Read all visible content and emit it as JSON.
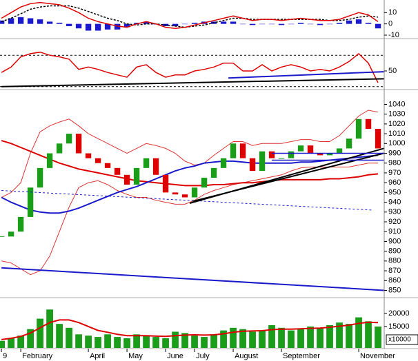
{
  "chart_data": [
    {
      "type": "line",
      "ylim": [
        -10,
        20
      ],
      "yticks": [
        10,
        0,
        -10
      ],
      "series": [
        {
          "color": "#1a1acc",
          "mark": "bar",
          "values": [
            3,
            5,
            6,
            5,
            4,
            2,
            1,
            -2,
            -4,
            -6,
            -6,
            -5,
            -5,
            -3,
            1,
            2,
            0,
            -2,
            -2,
            0,
            1,
            2,
            2,
            2,
            2,
            0,
            -1,
            0,
            0,
            -1,
            0,
            1,
            0,
            -1,
            0,
            1,
            3,
            4,
            1,
            -4
          ]
        },
        {
          "color": "#000000",
          "dash": true,
          "values": [
            2,
            5,
            9,
            13,
            15,
            16,
            16,
            16,
            14,
            11,
            8,
            5,
            3,
            0,
            -1,
            0,
            0,
            -1,
            -2,
            -3,
            -2,
            -1,
            1,
            3,
            5,
            5,
            4,
            4,
            4,
            4,
            4,
            4,
            4,
            4,
            3,
            3,
            4,
            6,
            7,
            6
          ]
        },
        {
          "color": "#dd0000",
          "values": [
            5,
            10,
            15,
            18,
            19,
            18,
            17,
            14,
            10,
            5,
            2,
            0,
            -2,
            -3,
            0,
            2,
            0,
            -3,
            -4,
            -3,
            -1,
            1,
            3,
            5,
            7,
            5,
            3,
            4,
            4,
            3,
            4,
            5,
            4,
            3,
            3,
            4,
            7,
            10,
            8,
            2
          ]
        }
      ]
    },
    {
      "type": "line",
      "ylim": [
        28,
        86
      ],
      "yticks": [
        50
      ],
      "levels": [
        70,
        30
      ],
      "series": [
        {
          "color": "#dd0000",
          "values": [
            48,
            55,
            68,
            72,
            74,
            70,
            68,
            65,
            52,
            55,
            52,
            48,
            45,
            42,
            55,
            58,
            48,
            42,
            45,
            45,
            50,
            52,
            55,
            60,
            60,
            50,
            50,
            58,
            50,
            55,
            58,
            55,
            50,
            52,
            50,
            55,
            62,
            72,
            60,
            35
          ]
        }
      ],
      "lines": [
        {
          "x": [
            0,
            39.6
          ],
          "y": [
            30,
            40
          ],
          "color": "#000000",
          "width": 2
        },
        {
          "x": [
            23.5,
            39.6
          ],
          "y": [
            41,
            49
          ],
          "color": "#1a1acc",
          "width": 2
        }
      ]
    },
    {
      "type": "candlestick",
      "ylim": [
        844,
        1053
      ],
      "yticks": [
        850,
        860,
        870,
        880,
        890,
        900,
        910,
        920,
        930,
        940,
        950,
        960,
        970,
        980,
        990,
        1000,
        1010,
        1020,
        1030,
        1040
      ],
      "close": [
        905,
        910,
        925,
        955,
        975,
        990,
        1000,
        1010,
        990,
        985,
        980,
        975,
        968,
        958,
        975,
        985,
        968,
        950,
        948,
        945,
        955,
        965,
        975,
        985,
        1000,
        985,
        972,
        992,
        985,
        985,
        992,
        998,
        990,
        988,
        990,
        995,
        1005,
        1025,
        1015,
        995
      ],
      "up_color": "#1a9e1a",
      "down_color": "#dd0000",
      "series": [
        {
          "color": "#dd3333",
          "width": 1,
          "values": [
            945,
            950,
            960,
            990,
            1012,
            1018,
            1022,
            1025,
            1018,
            1010,
            1005,
            1000,
            995,
            990,
            995,
            1000,
            998,
            995,
            990,
            982,
            978,
            980,
            988,
            995,
            1002,
            1002,
            998,
            1000,
            1000,
            1000,
            1002,
            1004,
            1004,
            1002,
            1002,
            1008,
            1018,
            1028,
            1034,
            1032
          ]
        },
        {
          "color": "#dd3333",
          "width": 1,
          "values": [
            880,
            878,
            872,
            866,
            870,
            885,
            910,
            935,
            955,
            960,
            962,
            958,
            952,
            948,
            945,
            945,
            942,
            940,
            938,
            938,
            942,
            948,
            952,
            955,
            958,
            960,
            962,
            964,
            966,
            968,
            972,
            975,
            976,
            976,
            976,
            976,
            976,
            978,
            980,
            980
          ]
        },
        {
          "color": "#dd0000",
          "width": 2,
          "values": [
            1003,
            1000,
            996,
            992,
            988,
            984,
            980,
            977,
            974,
            972,
            970,
            968,
            966,
            964,
            962,
            961,
            960,
            959,
            958,
            957,
            957,
            957,
            958,
            958,
            959,
            960,
            960,
            961,
            962,
            963,
            963,
            963,
            963,
            963,
            964,
            964,
            965,
            966,
            968,
            969
          ]
        },
        {
          "color": "#1a1acc",
          "width": 2,
          "values": [
            945,
            940,
            936,
            932,
            930,
            929,
            929,
            931,
            934,
            938,
            942,
            946,
            950,
            953,
            956,
            960,
            964,
            968,
            972,
            975,
            977,
            980,
            981,
            982,
            982,
            981,
            980,
            980,
            980,
            980,
            980,
            981,
            981,
            982,
            983,
            984,
            985,
            986,
            987,
            988
          ]
        }
      ],
      "lines": [
        {
          "x": [
            0,
            39.6
          ],
          "y": [
            873,
            850
          ],
          "color": "#1a1acc",
          "width": 2
        },
        {
          "x": [
            0,
            38.4
          ],
          "y": [
            952,
            932
          ],
          "color": "#1a1acc",
          "width": 1,
          "dash": true
        },
        {
          "x": [
            19.5,
            39.6
          ],
          "y": [
            939,
            995
          ],
          "color": "#000000",
          "width": 2
        },
        {
          "x": [
            19.8,
            39.6
          ],
          "y": [
            941,
            990
          ],
          "color": "#000000",
          "width": 2
        },
        {
          "x": [
            28,
            39.6
          ],
          "y": [
            990,
            990
          ],
          "color": "#1a1acc",
          "width": 1.5
        },
        {
          "x": [
            28,
            39.6
          ],
          "y": [
            983,
            983
          ],
          "color": "#1a1acc",
          "width": 1.5
        }
      ]
    },
    {
      "type": "bar",
      "ylim": [
        6800,
        25000
      ],
      "yticks": [
        20000,
        15000
      ],
      "unit_label": "x10000",
      "color": "#1a9e1a",
      "values": [
        9500,
        10500,
        11500,
        14000,
        18000,
        21500,
        16000,
        14500,
        12000,
        11500,
        11000,
        12000,
        11000,
        10500,
        12000,
        11500,
        11000,
        10500,
        13000,
        12500,
        11500,
        11000,
        12000,
        13500,
        14500,
        14000,
        13000,
        13500,
        15500,
        14500,
        13500,
        14000,
        15000,
        14500,
        15500,
        16500,
        16000,
        18500,
        17000,
        15000
      ],
      "series": [
        {
          "color": "#dd0000",
          "width": 2,
          "values": [
            10000,
            10500,
            11200,
            12500,
            14500,
            16500,
            17500,
            17500,
            16500,
            15000,
            13500,
            12800,
            12000,
            11500,
            11500,
            11500,
            11300,
            11200,
            11500,
            11700,
            11800,
            11700,
            11800,
            12200,
            12800,
            13200,
            13300,
            13400,
            13800,
            14000,
            14000,
            14100,
            14300,
            14400,
            14700,
            15100,
            15500,
            16200,
            16600,
            16500
          ]
        }
      ],
      "xlim": [
        -0.15,
        39.64
      ],
      "xticks": [
        {
          "value": 0,
          "label": "9"
        },
        {
          "value": 2,
          "label": "February"
        },
        {
          "value": 9,
          "label": "April"
        },
        {
          "value": 13,
          "label": "May"
        },
        {
          "value": 17,
          "label": "June"
        },
        {
          "value": 20,
          "label": "July"
        },
        {
          "value": 24,
          "label": "August"
        },
        {
          "value": 29,
          "label": "September"
        },
        {
          "value": 37,
          "label": "November"
        }
      ]
    }
  ]
}
